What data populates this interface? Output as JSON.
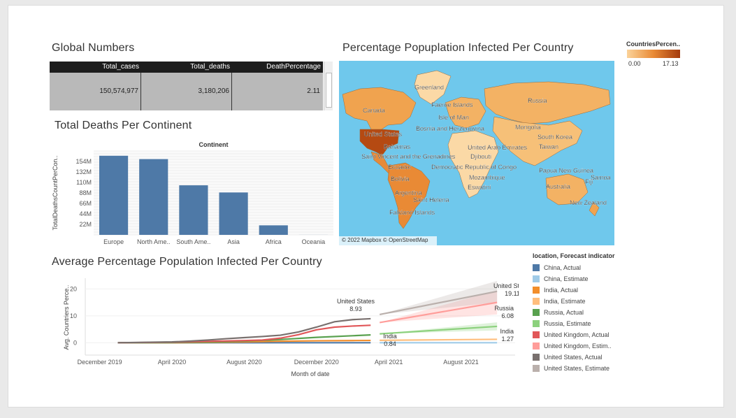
{
  "dashboard": {
    "global_numbers": {
      "title": "Global Numbers",
      "columns": [
        "Total_cases",
        "Total_deaths",
        "DeathPercentage"
      ],
      "values": [
        "150,574,977",
        "3,180,206",
        "2.11"
      ]
    },
    "map": {
      "title": "Percentage Popuplation Infected Per Country",
      "attribution": "© 2022 Mapbox © OpenStreetMap",
      "legend_title": "CountriesPercen..",
      "legend_min": "0.00",
      "legend_max": "17.13",
      "labels": [
        "Greenland",
        "Faeroe Islands",
        "Isle of Man",
        "Canada",
        "Bosnia and Herzegovina",
        "Russia",
        "Mongolia",
        "United States",
        "South Korea",
        "Taiwan",
        "United Arab Emirates",
        "Bahamas",
        "Saint Vincent and the Grenadines",
        "Djibouti",
        "Ecuador",
        "Democratic Republic of Congo",
        "Papua New Guinea",
        "Samoa",
        "Fiji",
        "Bolivia",
        "Mozambique",
        "Eswatini",
        "Australia",
        "Argentina",
        "Saint Helena",
        "New Zealand",
        "Falkland Islands"
      ],
      "colors": {
        "water": "#6fc8ec",
        "land_low": "#fbd9a6",
        "land_mid": "#f3b264",
        "land_high": "#e07a2a",
        "land_max": "#b54a12"
      }
    }
  },
  "chart_data": [
    {
      "type": "bar",
      "title": "Total Deaths Per Continent",
      "header": "Continent",
      "ylabel": "TotalDeathsCountPerCon..",
      "categories": [
        "Europe",
        "North Ame..",
        "South Ame..",
        "Asia",
        "Africa",
        "Oceania"
      ],
      "values": [
        166000000,
        159000000,
        104000000,
        89000000,
        20000000,
        100000
      ],
      "yticks": [
        22000000,
        44000000,
        66000000,
        88000000,
        110000000,
        132000000,
        154000000
      ],
      "ytick_labels": [
        "22M",
        "44M",
        "66M",
        "88M",
        "110M",
        "132M",
        "154M"
      ],
      "ylim": [
        0,
        176000000
      ],
      "color": "#4e79a7"
    },
    {
      "type": "line",
      "title": "Average Percentage Population Infected Per Country",
      "xlabel": "Month of date",
      "ylabel": "Avg. Countriers Perce..",
      "x_ticks": [
        "December 2019",
        "April 2020",
        "August 2020",
        "December 2020",
        "April 2021",
        "August 2021"
      ],
      "x_tick_months": [
        0,
        4,
        8,
        12,
        16,
        20
      ],
      "xlim": [
        -0.8,
        23
      ],
      "yticks": [
        0,
        10,
        20
      ],
      "ylim": [
        -2,
        24
      ],
      "legend_title": "location, Forecast indicator",
      "series": [
        {
          "name": "China, Actual",
          "color": "#4e79a7",
          "x": [
            1,
            4,
            8,
            12,
            15
          ],
          "y": [
            0,
            0,
            0,
            0,
            0
          ]
        },
        {
          "name": "China, Estimate",
          "color": "#a0cbe8",
          "x": [
            15.5,
            22
          ],
          "y": [
            0,
            0
          ]
        },
        {
          "name": "India, Actual",
          "color": "#f28e2b",
          "x": [
            1,
            4,
            6,
            8,
            10,
            12,
            14,
            15
          ],
          "y": [
            0,
            0,
            0.1,
            0.3,
            0.55,
            0.72,
            0.8,
            0.84
          ]
        },
        {
          "name": "India, Estimate",
          "color": "#ffbe7d",
          "x": [
            15.5,
            22
          ],
          "y": [
            0.9,
            1.27
          ]
        },
        {
          "name": "Russia, Actual",
          "color": "#59a14f",
          "x": [
            1,
            4,
            6,
            8,
            10,
            12,
            14,
            15
          ],
          "y": [
            0,
            0.05,
            0.2,
            0.6,
            1.2,
            2.0,
            2.6,
            2.9
          ]
        },
        {
          "name": "Russia, Estimate",
          "color": "#8cd17d",
          "x": [
            15.5,
            22
          ],
          "y": [
            3.3,
            6.08
          ]
        },
        {
          "name": "United Kingdom, Actual",
          "color": "#e15759",
          "x": [
            1,
            4,
            6,
            8,
            9,
            10,
            11,
            12,
            13,
            14,
            15
          ],
          "y": [
            0,
            0.2,
            0.5,
            0.8,
            1.0,
            1.7,
            3.0,
            4.8,
            5.8,
            6.2,
            6.5
          ]
        },
        {
          "name": "United Kingdom, Estim..",
          "color": "#ff9d9a",
          "x": [
            15.5,
            22
          ],
          "y": [
            7.5,
            15
          ]
        },
        {
          "name": "United States, Actual",
          "color": "#79706e",
          "x": [
            1,
            4,
            5,
            6,
            7,
            8,
            9,
            10,
            11,
            12,
            13,
            14,
            15
          ],
          "y": [
            0,
            0.3,
            0.6,
            1.0,
            1.5,
            1.9,
            2.3,
            2.8,
            4.0,
            5.8,
            7.8,
            8.6,
            8.93
          ]
        },
        {
          "name": "United States, Estimate",
          "color": "#bab0ac",
          "x": [
            15.5,
            22
          ],
          "y": [
            10.5,
            19.11
          ]
        }
      ],
      "annotations": [
        {
          "text": "United States",
          "value": "8.93"
        },
        {
          "text": "India",
          "value": "0.84"
        },
        {
          "text": "United States",
          "value": "19.11"
        },
        {
          "text": "Russia",
          "value": "6.08"
        },
        {
          "text": "India",
          "value": "1.27"
        }
      ]
    }
  ]
}
